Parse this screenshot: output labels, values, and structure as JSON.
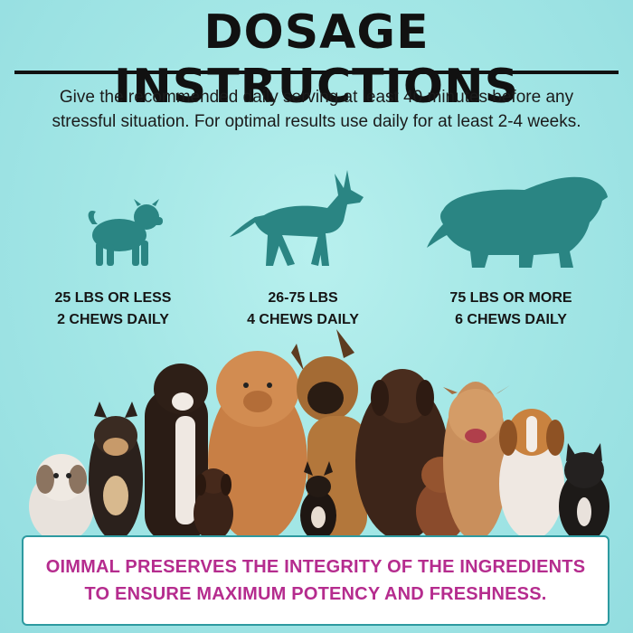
{
  "header": {
    "title": "DOSAGE INSTRUCTIONS",
    "intro_line1": "Give the recommended daily serving at least 40 minutes before any",
    "intro_line2": "stressful situation. For optimal results use daily for at least 2-4 weeks."
  },
  "dosages": [
    {
      "weight": "25 LBS OR LESS",
      "amount": "2 CHEWS DAILY"
    },
    {
      "weight": "26-75 LBS",
      "amount": "4 CHEWS DAILY"
    },
    {
      "weight": "75 LBS OR MORE",
      "amount": "6 CHEWS DAILY"
    }
  ],
  "banner": {
    "line1": "OIMMAL PRESERVES THE INTEGRITY OF THE INGREDIENTS",
    "line2": "TO ENSURE MAXIMUM POTENCY AND FRESHNESS."
  },
  "colors": {
    "background": "#a4e7e6",
    "silhouette": "#2a8583",
    "banner_text": "#b52c8e",
    "banner_border": "#2d9aa0"
  }
}
